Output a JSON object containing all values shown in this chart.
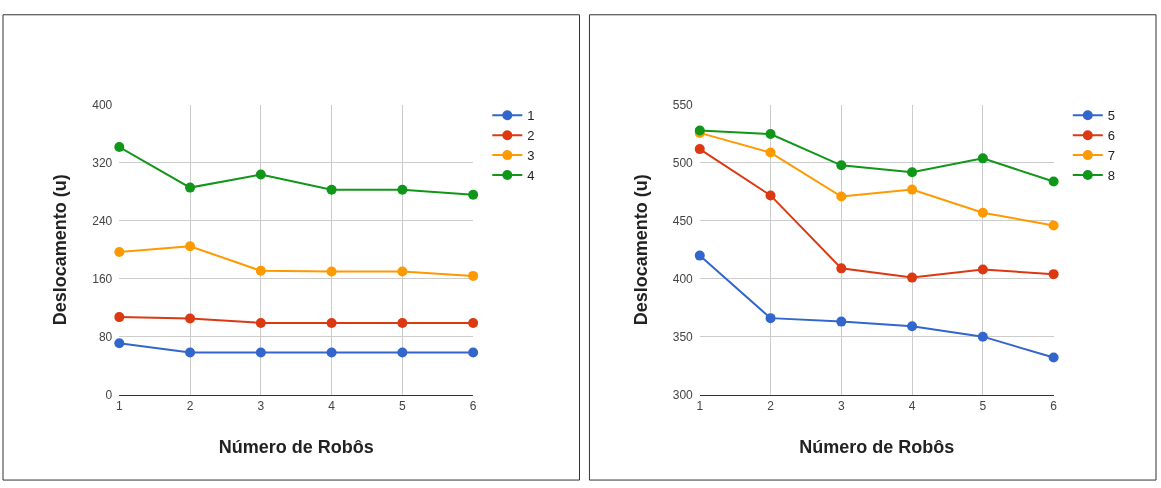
{
  "chart_data": [
    {
      "type": "line",
      "xlabel": "Número de Robôs",
      "ylabel": "Deslocamento (u)",
      "x": [
        1,
        2,
        3,
        4,
        5,
        6
      ],
      "xlim": [
        1,
        6
      ],
      "xticks": [
        1,
        2,
        3,
        4,
        5,
        6
      ],
      "ylim": [
        0,
        400
      ],
      "yticks": [
        0,
        80,
        160,
        240,
        320,
        400
      ],
      "grid": true,
      "legend": "right",
      "marker": "circle",
      "line_style": "solid",
      "series": [
        {
          "name": "1",
          "color": "#3366cc",
          "values": [
            71,
            58,
            58,
            58,
            58,
            58
          ]
        },
        {
          "name": "2",
          "color": "#dc3912",
          "values": [
            107,
            105,
            99,
            99,
            99,
            99
          ]
        },
        {
          "name": "3",
          "color": "#ff9900",
          "values": [
            197,
            205,
            171,
            170,
            170,
            164
          ]
        },
        {
          "name": "4",
          "color": "#109618",
          "values": [
            342,
            286,
            304,
            283,
            283,
            276
          ]
        }
      ]
    },
    {
      "type": "line",
      "xlabel": "Número de Robôs",
      "ylabel": "Deslocamento (u)",
      "x": [
        1,
        2,
        3,
        4,
        5,
        6
      ],
      "xlim": [
        1,
        6
      ],
      "xticks": [
        1,
        2,
        3,
        4,
        5,
        6
      ],
      "ylim": [
        300,
        550
      ],
      "yticks": [
        300,
        350,
        400,
        450,
        500,
        550
      ],
      "grid": true,
      "legend": "right",
      "marker": "circle",
      "line_style": "solid",
      "series": [
        {
          "name": "5",
          "color": "#3366cc",
          "values": [
            420,
            366,
            363,
            359,
            350,
            332
          ]
        },
        {
          "name": "6",
          "color": "#dc3912",
          "values": [
            512,
            472,
            409,
            401,
            408,
            404
          ]
        },
        {
          "name": "7",
          "color": "#ff9900",
          "values": [
            526,
            509,
            471,
            477,
            457,
            446
          ]
        },
        {
          "name": "8",
          "color": "#109618",
          "values": [
            528,
            525,
            498,
            492,
            504,
            484
          ]
        }
      ]
    }
  ]
}
